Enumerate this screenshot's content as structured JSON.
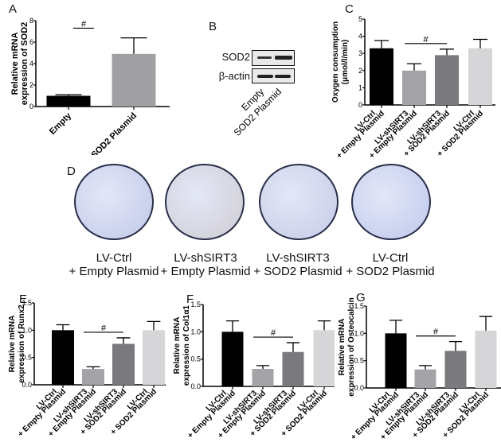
{
  "panels": {
    "A": {
      "letter": "A"
    },
    "B": {
      "letter": "B"
    },
    "C": {
      "letter": "C"
    },
    "D": {
      "letter": "D"
    },
    "E": {
      "letter": "E"
    },
    "F": {
      "letter": "F"
    },
    "G": {
      "letter": "G"
    }
  },
  "western_blot": {
    "rows": [
      "SOD2",
      "β-actin"
    ],
    "lanes": [
      "Empty",
      "SOD2 Plasmid"
    ]
  },
  "colony_plates": {
    "labels": [
      {
        "line1": "LV-Ctrl",
        "line2": "+ Empty Plasmid"
      },
      {
        "line1": "LV-shSIRT3",
        "line2": "+ Empty Plasmid"
      },
      {
        "line1": "LV-shSIRT3",
        "line2": "+ SOD2 Plasmid"
      },
      {
        "line1": "LV-Ctrl",
        "line2": "+ SOD2 Plasmid"
      }
    ],
    "colors": [
      "#c9d0ec",
      "#d4d3dc",
      "#ccd2ea",
      "#c7d0ef"
    ]
  },
  "significance_marker": "#",
  "chart_data": [
    {
      "panel": "A",
      "type": "bar",
      "title": "",
      "xlabel": "",
      "ylabel": "Relative mRNA expression of SOD2",
      "ylabel_lines": [
        "Relative mRNA",
        "expression of SOD2"
      ],
      "categories": [
        "Empty",
        "SOD2 Plasmid"
      ],
      "values": [
        1.0,
        4.9
      ],
      "error_upper": [
        1.1,
        6.4
      ],
      "colors": [
        "#000000",
        "#a0a0a4"
      ],
      "ylim": [
        0,
        8
      ],
      "yticks": [
        0,
        2,
        4,
        6,
        8
      ],
      "significance": {
        "between": [
          0,
          1
        ],
        "label": "#"
      }
    },
    {
      "panel": "C",
      "type": "bar",
      "title": "",
      "xlabel": "",
      "ylabel": "Oxygen consumption (μmol/l/min)",
      "ylabel_lines": [
        "Oxygen consumption",
        "(μmol/l/min)"
      ],
      "categories": [
        "LV-Ctrl + Empty Plasmid",
        "LV-shSIRT3 + Empty Plasmid",
        "LV-shSIRT3 + SOD2 Plasmid",
        "LV-Ctrl + SOD2 Plasmid"
      ],
      "category_lines": [
        [
          "LV-Ctrl",
          "+ Empty Plasmid"
        ],
        [
          "LV-shSIRT3",
          "+ Empty Plasmid"
        ],
        [
          "LV-shSIRT3",
          "+ SOD2 Plasmid"
        ],
        [
          "LV-Ctrl",
          "+ SOD2 Plasmid"
        ]
      ],
      "values": [
        3.3,
        2.0,
        2.9,
        3.3
      ],
      "error_upper": [
        3.75,
        2.4,
        3.25,
        3.82
      ],
      "colors": [
        "#000000",
        "#a4a4a8",
        "#7a7a7e",
        "#d6d6d8"
      ],
      "ylim": [
        0,
        5
      ],
      "yticks": [
        0,
        1,
        2,
        3,
        4,
        5
      ],
      "significance": {
        "between": [
          1,
          2
        ],
        "label": "#"
      }
    },
    {
      "panel": "E",
      "type": "bar",
      "title": "",
      "xlabel": "",
      "ylabel": "Relative mRNA expression of Runx2",
      "ylabel_lines": [
        "Relative mRNA",
        "expression of Runx2"
      ],
      "categories": [
        "LV-Ctrl + Empty Plasmid",
        "LV-shSIRT3 + Empty Plasmid",
        "LV-shSIRT3 + SOD2 Plasmid",
        "LV-Ctrl + SOD2 Plasmid"
      ],
      "category_lines": [
        [
          "LV-Ctrl",
          "+ Empty Plasmid"
        ],
        [
          "LV-shSIRT3",
          "+ Empty Plasmid"
        ],
        [
          "LV-shSIRT3",
          "+ SOD2 Plasmid"
        ],
        [
          "LV-Ctrl",
          "+ SOD2 Plasmid"
        ]
      ],
      "values": [
        1.0,
        0.29,
        0.75,
        1.0
      ],
      "error_upper": [
        1.1,
        0.33,
        0.86,
        1.16
      ],
      "colors": [
        "#000000",
        "#a4a4a8",
        "#7a7a7e",
        "#d6d6d8"
      ],
      "ylim": [
        0,
        1.5
      ],
      "yticks": [
        "0.0",
        "0.5",
        "1.0",
        "1.5"
      ],
      "significance": {
        "between": [
          1,
          2
        ],
        "label": "#"
      }
    },
    {
      "panel": "F",
      "type": "bar",
      "title": "",
      "xlabel": "",
      "ylabel": "Relative mRNA expression of Col1α1",
      "ylabel_lines": [
        "Relative mRNA",
        "expression of Col1α1"
      ],
      "categories": [
        "LV-Ctrl + Empty Plasmid",
        "LV-shSIRT3 + Empty Plasmid",
        "LV-shSIRT3 + SOD2 Plasmid",
        "LV-Ctrl + SOD2 Plasmid"
      ],
      "category_lines": [
        [
          "LV-Ctrl",
          "+ Empty Plasmid"
        ],
        [
          "LV-shSIRT3",
          "+ Empty Plasmid"
        ],
        [
          "LV-shSIRT3",
          "+ SOD2 Plasmid"
        ],
        [
          "LV-Ctrl",
          "+ SOD2 Plasmid"
        ]
      ],
      "values": [
        1.0,
        0.32,
        0.63,
        1.03
      ],
      "error_upper": [
        1.2,
        0.38,
        0.8,
        1.2
      ],
      "colors": [
        "#000000",
        "#a4a4a8",
        "#7a7a7e",
        "#d6d6d8"
      ],
      "ylim": [
        0,
        1.5
      ],
      "yticks": [
        "0.0",
        "0.5",
        "1.0",
        "1.5"
      ],
      "significance": {
        "between": [
          1,
          2
        ],
        "label": "#"
      }
    },
    {
      "panel": "G",
      "type": "bar",
      "title": "",
      "xlabel": "",
      "ylabel": "Relative mRNA expression of Osteocalcin",
      "ylabel_lines": [
        "Relative mRNA",
        "expression of Osteocalcin"
      ],
      "categories": [
        "LV-Ctrl + Empty Plasmid",
        "LV-shSIRT3 + Empty Plasmid",
        "LV-shSIRT3 + SOD2 Plasmid",
        "LV-Ctrl + SOD2 Plasmid"
      ],
      "category_lines": [
        [
          "LV-Ctrl",
          "+ Empty Plasmid"
        ],
        [
          "LV-shSIRT3",
          "+ Empty Plasmid"
        ],
        [
          "LV-shSIRT3",
          "+ SOD2 Plasmid"
        ],
        [
          "LV-Ctrl",
          "+ SOD2 Plasmid"
        ]
      ],
      "values": [
        1.0,
        0.34,
        0.68,
        1.05
      ],
      "error_upper": [
        1.24,
        0.41,
        0.85,
        1.31
      ],
      "colors": [
        "#000000",
        "#a4a4a8",
        "#7a7a7e",
        "#d6d6d8"
      ],
      "ylim": [
        0,
        1.5
      ],
      "yticks": [
        "0.0",
        "0.5",
        "1.0",
        "1.5"
      ],
      "significance": {
        "between": [
          1,
          2
        ],
        "label": "#"
      }
    }
  ]
}
